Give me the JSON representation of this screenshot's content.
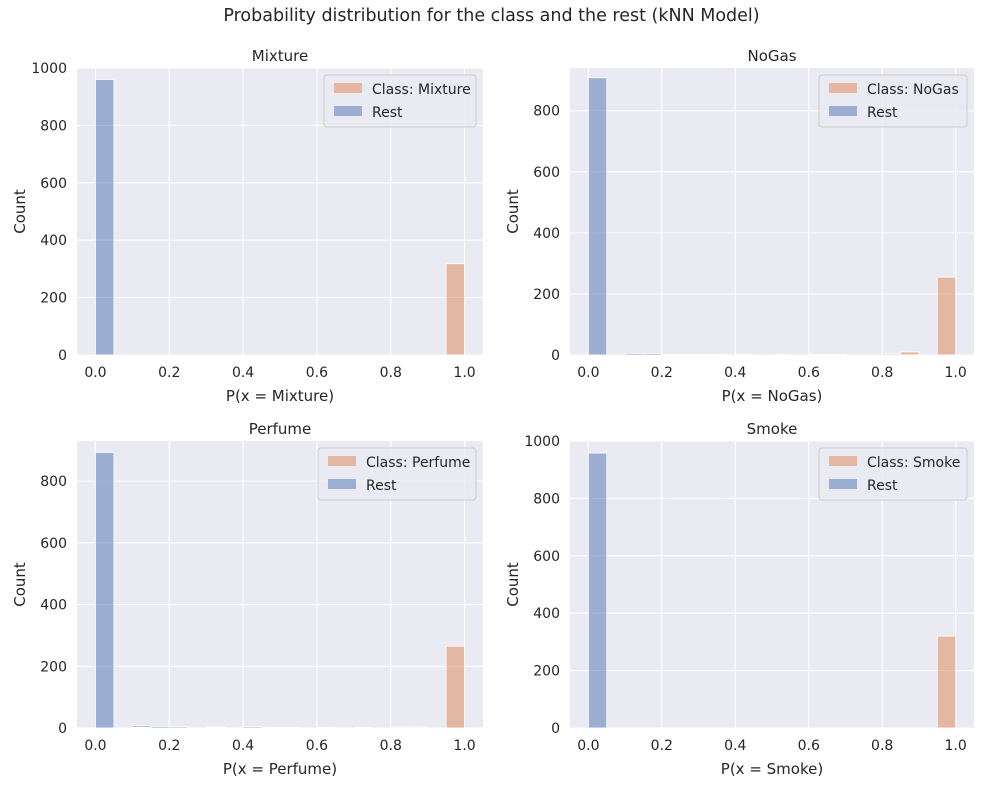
{
  "suptitle": "Probability distribution for the class and the rest (kNN Model)",
  "colors": {
    "class": "#dd8452",
    "rest": "#4c72b0",
    "panel_bg": "#eaeaf2",
    "grid": "#ffffff",
    "text": "#262626"
  },
  "chart_data": [
    {
      "type": "bar",
      "title": "Mixture",
      "xlabel": "P(x = Mixture)",
      "ylabel": "Count",
      "xlim": [
        -0.05,
        1.05
      ],
      "ylim": [
        0,
        1000
      ],
      "xticks": [
        "0.0",
        "0.2",
        "0.4",
        "0.6",
        "0.8",
        "1.0"
      ],
      "yticks": [
        "0",
        "200",
        "400",
        "600",
        "800",
        "1000"
      ],
      "bin_width": 0.05,
      "legend_position": "top-right",
      "series": [
        {
          "name": "Class: Mixture",
          "bins": [
            [
              0.95,
              318
            ]
          ]
        },
        {
          "name": "Rest",
          "bins": [
            [
              0.0,
              960
            ]
          ]
        }
      ]
    },
    {
      "type": "bar",
      "title": "NoGas",
      "xlabel": "P(x = NoGas)",
      "ylabel": "Count",
      "xlim": [
        -0.05,
        1.05
      ],
      "ylim": [
        0,
        940
      ],
      "xticks": [
        "0.0",
        "0.2",
        "0.4",
        "0.6",
        "0.8",
        "1.0"
      ],
      "yticks": [
        "0",
        "200",
        "400",
        "600",
        "800"
      ],
      "bin_width": 0.05,
      "legend_position": "top-right",
      "series": [
        {
          "name": "Class: NoGas",
          "bins": [
            [
              0.6,
              2
            ],
            [
              0.65,
              2
            ],
            [
              0.8,
              4
            ],
            [
              0.85,
              10
            ],
            [
              0.95,
              255
            ]
          ]
        },
        {
          "name": "Rest",
          "bins": [
            [
              0.0,
              908
            ],
            [
              0.1,
              5
            ],
            [
              0.15,
              5
            ],
            [
              0.2,
              2
            ],
            [
              0.25,
              2
            ],
            [
              0.3,
              2
            ],
            [
              0.35,
              1
            ],
            [
              0.4,
              1
            ],
            [
              0.5,
              1
            ],
            [
              0.6,
              2
            ],
            [
              0.65,
              2
            ],
            [
              0.8,
              2
            ],
            [
              0.85,
              2
            ]
          ]
        }
      ]
    },
    {
      "type": "bar",
      "title": "Perfume",
      "xlabel": "P(x = Perfume)",
      "ylabel": "Count",
      "xlim": [
        -0.05,
        1.05
      ],
      "ylim": [
        0,
        930
      ],
      "xticks": [
        "0.0",
        "0.2",
        "0.4",
        "0.6",
        "0.8",
        "1.0"
      ],
      "yticks": [
        "0",
        "200",
        "400",
        "600",
        "800"
      ],
      "bin_width": 0.05,
      "legend_position": "top-right",
      "series": [
        {
          "name": "Class: Perfume",
          "bins": [
            [
              0.1,
              2
            ],
            [
              0.3,
              2
            ],
            [
              0.8,
              3
            ],
            [
              0.85,
              3
            ],
            [
              0.95,
              265
            ]
          ]
        },
        {
          "name": "Rest",
          "bins": [
            [
              0.0,
              893
            ],
            [
              0.1,
              7
            ],
            [
              0.15,
              5
            ],
            [
              0.2,
              4
            ],
            [
              0.3,
              4
            ],
            [
              0.4,
              4
            ],
            [
              0.45,
              2
            ],
            [
              0.5,
              2
            ],
            [
              0.6,
              2
            ],
            [
              0.7,
              2
            ],
            [
              0.8,
              3
            ],
            [
              0.85,
              3
            ]
          ]
        }
      ]
    },
    {
      "type": "bar",
      "title": "Smoke",
      "xlabel": "P(x = Smoke)",
      "ylabel": "Count",
      "xlim": [
        -0.05,
        1.05
      ],
      "ylim": [
        0,
        1000
      ],
      "xticks": [
        "0.0",
        "0.2",
        "0.4",
        "0.6",
        "0.8",
        "1.0"
      ],
      "yticks": [
        "0",
        "200",
        "400",
        "600",
        "800",
        "1000"
      ],
      "bin_width": 0.05,
      "legend_position": "top-right",
      "series": [
        {
          "name": "Class: Smoke",
          "bins": [
            [
              0.95,
              320
            ]
          ]
        },
        {
          "name": "Rest",
          "bins": [
            [
              0.0,
              958
            ]
          ]
        }
      ]
    }
  ]
}
